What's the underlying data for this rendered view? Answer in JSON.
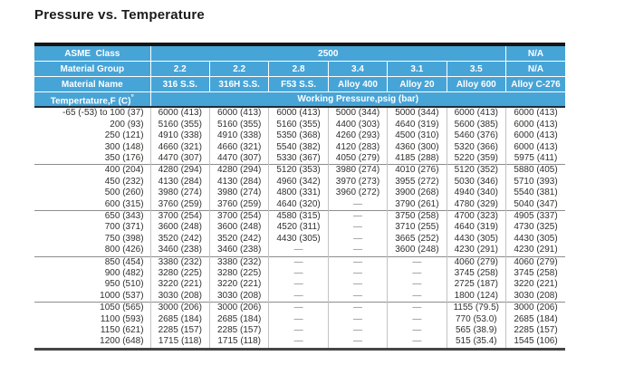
{
  "title": "Pressure vs. Temperature",
  "colors": {
    "header_blue": "#47a4d7",
    "header_text": "#ffffff",
    "top_border": "#151515",
    "data_text": "#30302f"
  },
  "header": {
    "asme_class_label": "ASME  Class",
    "asme_class_value": "2500",
    "asme_class_na": "N/A",
    "material_group_label": "Material Group",
    "material_groups": [
      "2.2",
      "2.2",
      "2.8",
      "3.4",
      "3.1",
      "3.5",
      "N/A"
    ],
    "material_name_label": "Material Name",
    "material_names": [
      "316 S.S.",
      "316H S.S.",
      "F53 S.S.",
      "Alloy 400",
      "Alloy 20",
      "Alloy 600",
      "Alloy C-276"
    ],
    "temperature_label": "Tempertature,F (C)",
    "temperature_footnote_mark": "°",
    "working_pressure_label": "Working Pressure,psig (bar)"
  },
  "body": {
    "groups": [
      {
        "rows": [
          [
            "-65 (-53) to 100 (37)",
            "6000 (413)",
            "6000 (413)",
            "6000 (413)",
            "5000 (344)",
            "5000 (344)",
            "6000 (413)",
            "6000 (413)"
          ],
          [
            "200 (93)",
            "5160 (355)",
            "5160 (355)",
            "5160 (355)",
            "4400 (303)",
            "4640 (319)",
            "5600 (385)",
            "6000 (413)"
          ],
          [
            "250 (121)",
            "4910 (338)",
            "4910 (338)",
            "5350 (368)",
            "4260 (293)",
            "4500 (310)",
            "5460 (376)",
            "6000 (413)"
          ],
          [
            "300 (148)",
            "4660 (321)",
            "4660 (321)",
            "5540 (382)",
            "4120 (283)",
            "4360 (300)",
            "5320 (366)",
            "6000 (413)"
          ],
          [
            "350 (176)",
            "4470 (307)",
            "4470 (307)",
            "5330 (367)",
            "4050 (279)",
            "4185 (288)",
            "5220 (359)",
            "5975 (411)"
          ]
        ]
      },
      {
        "rows": [
          [
            "400 (204)",
            "4280 (294)",
            "4280 (294)",
            "5120 (353)",
            "3980 (274)",
            "4010 (276)",
            "5120 (352)",
            "5880 (405)"
          ],
          [
            "450 (232)",
            "4130 (284)",
            "4130 (284)",
            "4960 (342)",
            "3970 (273)",
            "3955 (272)",
            "5030 (346)",
            "5710 (393)"
          ],
          [
            "500 (260)",
            "3980 (274)",
            "3980 (274)",
            "4800 (331)",
            "3960 (272)",
            "3900 (268)",
            "4940 (340)",
            "5540 (381)"
          ],
          [
            "600 (315)",
            "3760 (259)",
            "3760 (259)",
            "4640 (320)",
            "—",
            "3790 (261)",
            "4780 (329)",
            "5040 (347)"
          ]
        ]
      },
      {
        "rows": [
          [
            "650 (343)",
            "3700 (254)",
            "3700 (254)",
            "4580 (315)",
            "—",
            "3750 (258)",
            "4700 (323)",
            "4905 (337)"
          ],
          [
            "700 (371)",
            "3600 (248)",
            "3600 (248)",
            "4520 (311)",
            "—",
            "3710 (255)",
            "4640 (319)",
            "4730 (325)"
          ],
          [
            "750 (398)",
            "3520 (242)",
            "3520 (242)",
            "4430 (305)",
            "—",
            "3665 (252)",
            "4430 (305)",
            "4430 (305)"
          ],
          [
            "800 (426)",
            "3460 (238)",
            "3460 (238)",
            "—",
            "—",
            "3600 (248)",
            "4230 (291)",
            "4230 (291)"
          ]
        ]
      },
      {
        "rows": [
          [
            "850 (454)",
            "3380 (232)",
            "3380 (232)",
            "—",
            "—",
            "—",
            "4060 (279)",
            "4060 (279)"
          ],
          [
            "900 (482)",
            "3280 (225)",
            "3280 (225)",
            "—",
            "—",
            "—",
            "3745 (258)",
            "3745 (258)"
          ],
          [
            "950 (510)",
            "3220 (221)",
            "3220 (221)",
            "—",
            "—",
            "—",
            "2725 (187)",
            "3220 (221)"
          ],
          [
            "1000 (537)",
            "3030 (208)",
            "3030 (208)",
            "—",
            "—",
            "—",
            "1800 (124)",
            "3030 (208)"
          ]
        ]
      },
      {
        "rows": [
          [
            "1050 (565)",
            "3000 (206)",
            "3000 (206)",
            "—",
            "—",
            "—",
            "1155 (79.5)",
            "3000 (206)"
          ],
          [
            "1100 (593)",
            "2685 (184)",
            "2685 (184)",
            "—",
            "—",
            "—",
            "770 (53.0)",
            "2685 (184)"
          ],
          [
            "1150 (621)",
            "2285 (157)",
            "2285 (157)",
            "—",
            "—",
            "—",
            "565 (38.9)",
            "2285 (157)"
          ],
          [
            "1200 (648)",
            "1715 (118)",
            "1715 (118)",
            "—",
            "—",
            "—",
            "515 (35.4)",
            "1545 (106)"
          ]
        ]
      }
    ]
  }
}
